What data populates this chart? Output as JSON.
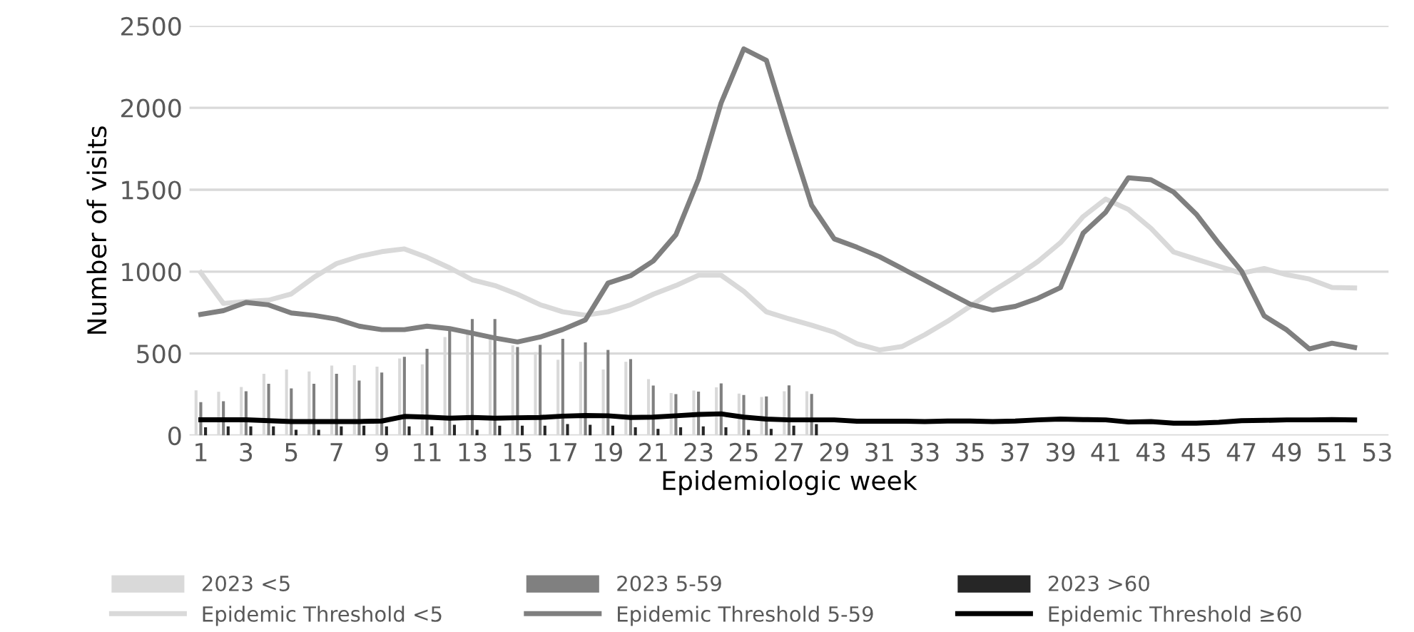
{
  "chart_data": {
    "type": "bar",
    "xlabel": "Epidemiologic week",
    "ylabel": "Number of visits",
    "categories": [
      "1",
      null,
      "3",
      null,
      "5",
      null,
      "7",
      null,
      "9",
      null,
      "11",
      null,
      "13",
      null,
      "15",
      null,
      "17",
      null,
      "19",
      null,
      "21",
      null,
      "23",
      null,
      "25",
      null,
      "27",
      null,
      "29",
      null,
      "31",
      null,
      "33",
      null,
      "35",
      null,
      "37",
      null,
      "39",
      null,
      "41",
      null,
      "43",
      null,
      "45",
      null,
      "47",
      null,
      "49",
      null,
      "51",
      null,
      "53"
    ],
    "ylim": [
      0,
      2500
    ],
    "yticks": [
      0,
      500,
      1000,
      1500,
      2000,
      2500
    ],
    "grid": "y",
    "legend": "bottom",
    "series": [
      {
        "name": "2023 <5",
        "color": "#d9d9d9",
        "values": [
          275,
          267,
          296,
          377,
          403,
          391,
          426,
          429,
          420,
          470,
          434,
          601,
          620,
          600,
          550,
          509,
          462,
          450,
          403,
          450,
          344,
          259,
          274,
          294,
          256,
          235,
          270,
          270,
          null,
          null,
          null,
          null,
          null,
          null,
          null,
          null,
          null,
          null,
          null,
          null,
          null,
          null,
          null,
          null,
          null,
          null,
          null,
          null,
          null,
          null,
          null,
          null,
          null
        ]
      },
      {
        "name": "2023 5-59",
        "color": "#808080",
        "values": [
          203,
          209,
          270,
          316,
          287,
          316,
          377,
          335,
          384,
          480,
          529,
          645,
          711,
          711,
          540,
          553,
          590,
          568,
          522,
          466,
          305,
          252,
          268,
          318,
          247,
          238,
          306,
          253,
          null,
          null,
          null,
          null,
          null,
          null,
          null,
          null,
          null,
          null,
          null,
          null,
          null,
          null,
          null,
          null,
          null,
          null,
          null,
          null,
          null,
          null,
          null,
          null,
          null
        ]
      },
      {
        "name": "2023 >60",
        "color": "#262626",
        "values": [
          50,
          55,
          55,
          55,
          35,
          35,
          55,
          60,
          55,
          55,
          55,
          65,
          35,
          60,
          60,
          60,
          70,
          65,
          60,
          50,
          40,
          50,
          55,
          50,
          35,
          40,
          60,
          70,
          null,
          null,
          null,
          null,
          null,
          null,
          null,
          null,
          null,
          null,
          null,
          null,
          null,
          null,
          null,
          null,
          null,
          null,
          null,
          null,
          null,
          null,
          null,
          null,
          null
        ]
      },
      {
        "name": "Epidemic Threshold <5",
        "type": "line",
        "color": "#d9d9d9",
        "values": [
          994,
          806,
          817,
          826,
          864,
          965,
          1049,
          1093,
          1122,
          1139,
          1087,
          1023,
          950,
          915,
          862,
          798,
          755,
          734,
          755,
          798,
          862,
          915,
          978,
          978,
          880,
          755,
          712,
          673,
          630,
          560,
          522,
          543,
          615,
          696,
          788,
          881,
          967,
          1062,
          1177,
          1336,
          1443,
          1380,
          1264,
          1120,
          1076,
          1033,
          990,
          1019,
          981,
          955,
          903,
          900,
          null
        ]
      },
      {
        "name": "Epidemic Threshold 5-59",
        "type": "line",
        "color": "#7f7f7f",
        "values": [
          739,
          762,
          812,
          797,
          748,
          733,
          710,
          667,
          646,
          646,
          667,
          652,
          624,
          595,
          571,
          601,
          647,
          705,
          930,
          975,
          1065,
          1225,
          1565,
          2030,
          2360,
          2290,
          1840,
          1405,
          1200,
          1149,
          1091,
          1019,
          947,
          874,
          802,
          765,
          788,
          837,
          903,
          1235,
          1363,
          1573,
          1561,
          1486,
          1351,
          1172,
          1004,
          730,
          644,
          528,
          563,
          537,
          null
        ]
      },
      {
        "name": "Epidemic Threshold ≥60",
        "type": "line",
        "color": "#000000",
        "values": [
          96,
          96,
          96,
          90,
          85,
          85,
          85,
          85,
          88,
          116,
          112,
          105,
          110,
          105,
          108,
          110,
          118,
          122,
          120,
          110,
          112,
          120,
          128,
          132,
          112,
          100,
          95,
          95,
          95,
          87,
          87,
          87,
          85,
          88,
          88,
          85,
          88,
          95,
          100,
          97,
          95,
          82,
          85,
          75,
          75,
          80,
          90,
          92,
          95,
          95,
          97,
          95,
          null
        ]
      }
    ]
  }
}
